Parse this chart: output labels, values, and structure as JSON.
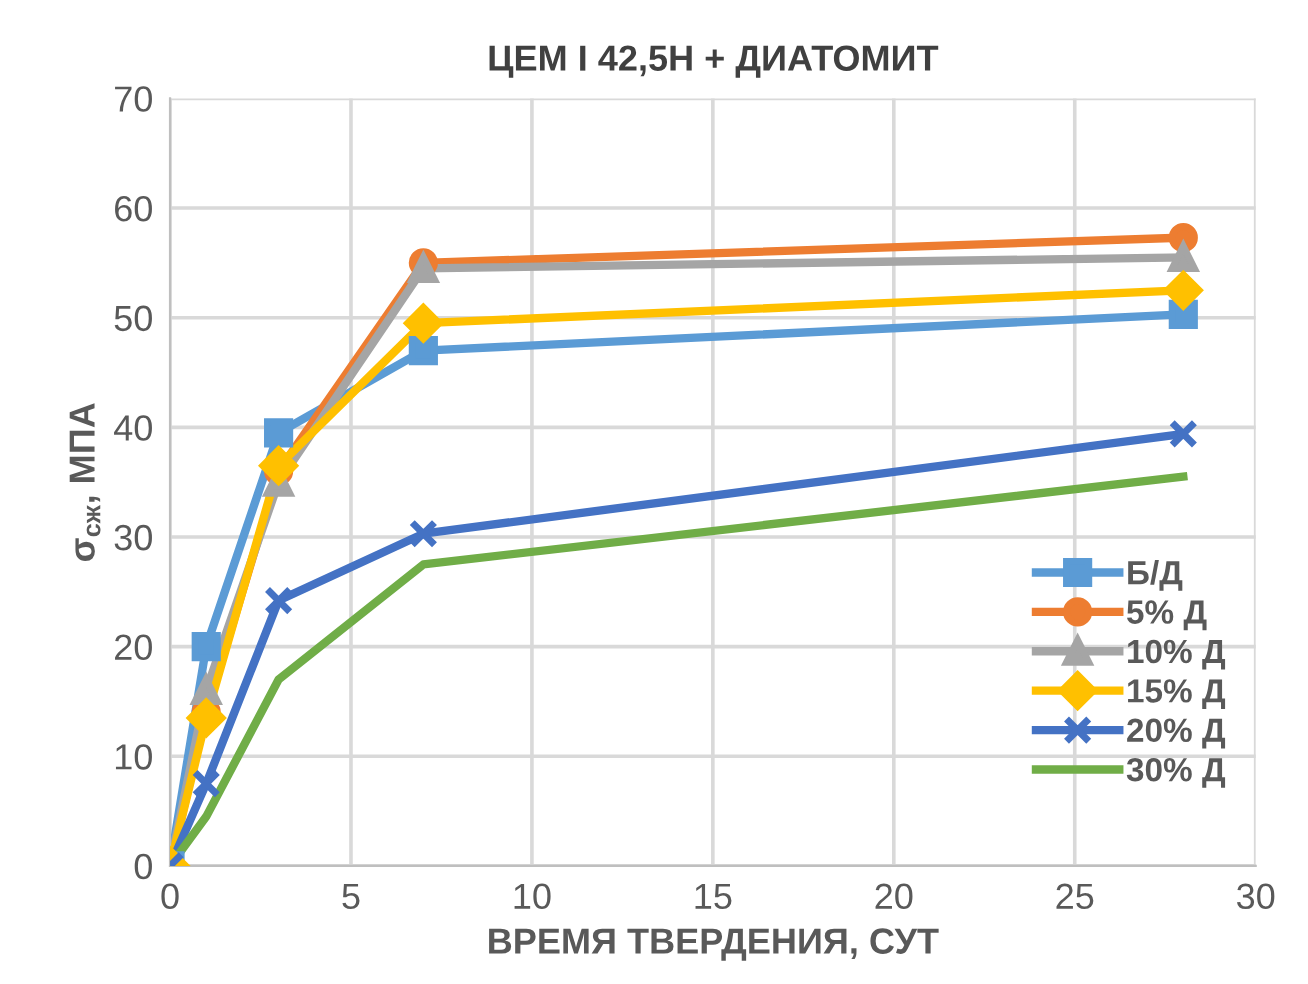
{
  "chart_data": {
    "type": "line",
    "title": "ЦЕМ I 42,5Н + ДИАТОМИТ",
    "xlabel": "ВРЕМЯ ТВЕРДЕНИЯ, СУТ",
    "ylabel": "σ$_{сж}$, МПА",
    "x": [
      0,
      1,
      3,
      7,
      28
    ],
    "series": [
      {
        "name": "Б/Д",
        "color": "#5b9bd5",
        "marker": "square",
        "values": [
          0,
          20,
          39.5,
          47,
          50.3
        ]
      },
      {
        "name": "5% Д",
        "color": "#ed7d31",
        "marker": "circle",
        "values": [
          0,
          14,
          36,
          55,
          57.3
        ]
      },
      {
        "name": "10% Д",
        "color": "#a5a5a5",
        "marker": "triangle",
        "values": [
          0,
          16,
          35,
          54.5,
          55.5
        ]
      },
      {
        "name": "15% Д",
        "color": "#ffc000",
        "marker": "diamond",
        "values": [
          0,
          13.5,
          36.5,
          49.5,
          52.5
        ]
      },
      {
        "name": "20% Д",
        "color": "#4472c4",
        "marker": "cross",
        "values": [
          0,
          7.5,
          24.2,
          30.3,
          39.4
        ]
      },
      {
        "name": "30% Д",
        "color": "#70ad47",
        "marker": "none",
        "values": [
          0,
          4.5,
          17,
          27.5,
          35.5
        ]
      }
    ],
    "xlim": [
      0,
      30
    ],
    "ylim": [
      0,
      70
    ],
    "xticks": [
      0,
      5,
      10,
      15,
      20,
      25,
      30
    ],
    "yticks": [
      0,
      10,
      20,
      30,
      40,
      50,
      60,
      70
    ],
    "grid": true,
    "legend": "right"
  }
}
